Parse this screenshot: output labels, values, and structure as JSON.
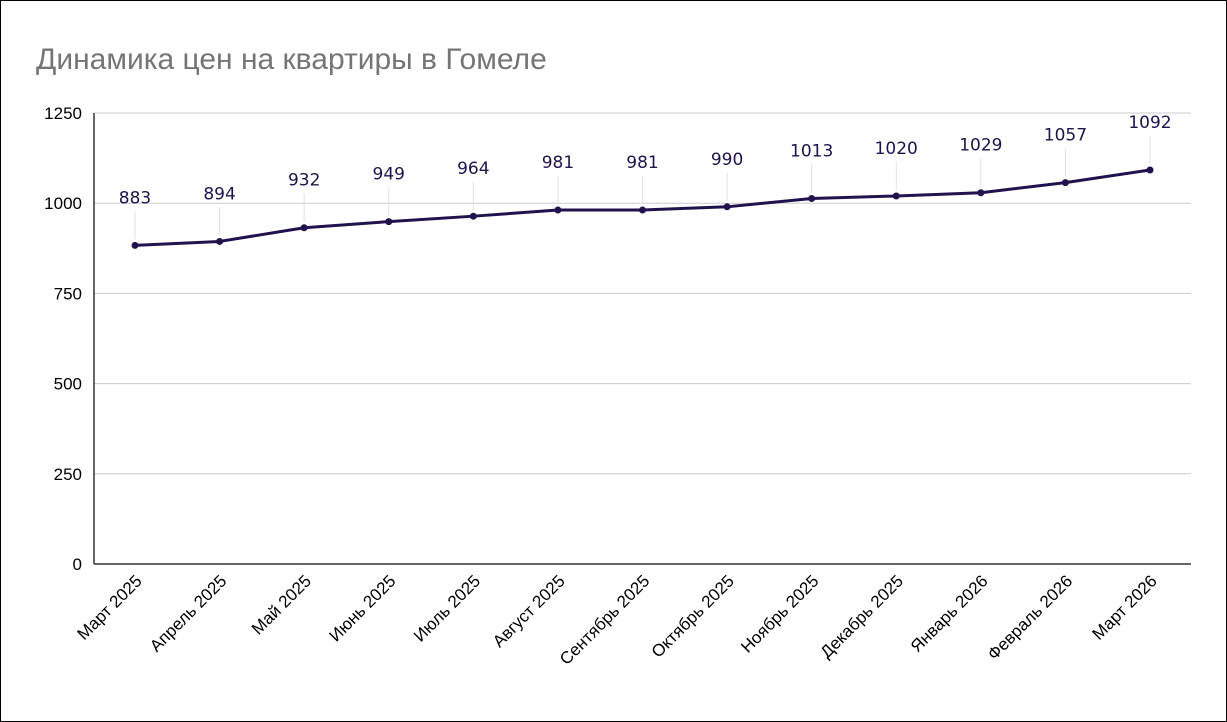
{
  "chart_data": {
    "type": "line",
    "title": "Динамика цен на квартиры в Гомеле",
    "xlabel": "",
    "ylabel": "",
    "categories": [
      "Март 2025",
      "Апрель 2025",
      "Май 2025",
      "Июнь 2025",
      "Июль 2025",
      "Август 2025",
      "Сентябрь 2025",
      "Октябрь 2025",
      "Ноябрь 2025",
      "Декабрь 2025",
      "Январь 2026",
      "Февраль 2026",
      "Март 2026"
    ],
    "values": [
      883,
      894,
      932,
      949,
      964,
      981,
      981,
      990,
      1013,
      1020,
      1029,
      1057,
      1092
    ],
    "data_labels": [
      "883",
      "894",
      "932",
      "949",
      "964",
      "981",
      "981",
      "990",
      "1013",
      "1020",
      "1029",
      "1057",
      "1092"
    ],
    "ylim": [
      0,
      1250
    ],
    "yticks": [
      "0",
      "250",
      "500",
      "750",
      "1000",
      "1250"
    ],
    "grid": true,
    "legend": "none",
    "colors": {
      "line": "#20124d",
      "grid": "#cccccc",
      "title": "#757575"
    }
  }
}
